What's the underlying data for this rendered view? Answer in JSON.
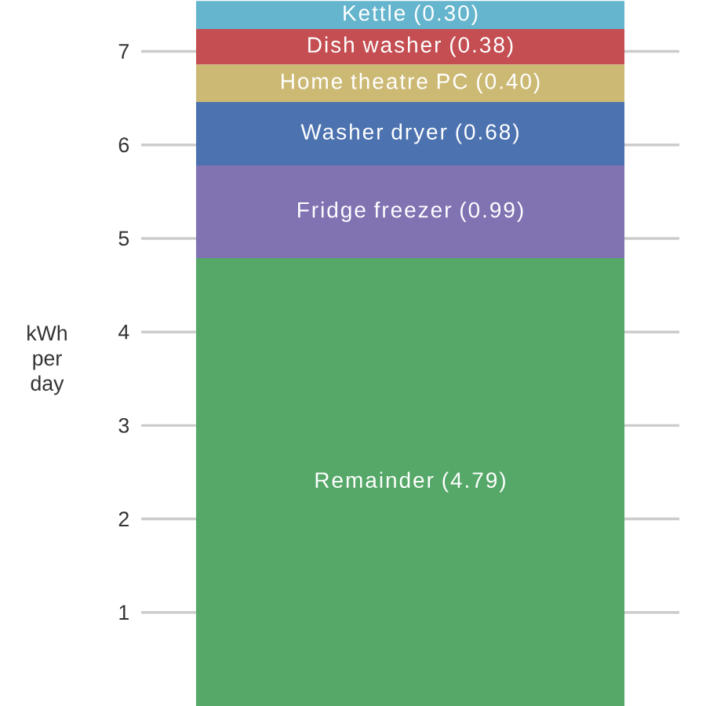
{
  "chart_data": {
    "type": "bar",
    "stacked": true,
    "categories": [
      null
    ],
    "ylabel": "kWh per day",
    "ylim": [
      0,
      7.55
    ],
    "yticks": [
      1,
      2,
      3,
      4,
      5,
      6,
      7
    ],
    "grid": "y",
    "tick_labels": "y",
    "series": [
      {
        "name": "Remainder",
        "color": "#55a868",
        "values": [
          4.79
        ],
        "value_labels": [
          "(4.79)"
        ]
      },
      {
        "name": "Fridge freezer",
        "color": "#8172b2",
        "values": [
          0.99
        ],
        "value_labels": [
          "(0.99)"
        ]
      },
      {
        "name": "Washer dryer",
        "color": "#4c72b0",
        "values": [
          0.68
        ],
        "value_labels": [
          "(0.68)"
        ]
      },
      {
        "name": "Home theatre PC",
        "color": "#ccb974",
        "values": [
          0.4
        ],
        "value_labels": [
          "(0.40)"
        ]
      },
      {
        "name": "Dish washer",
        "color": "#c44e52",
        "values": [
          0.38
        ],
        "value_labels": [
          "(0.38)"
        ]
      },
      {
        "name": "Kettle",
        "color": "#64b5cd",
        "values": [
          0.3
        ],
        "value_labels": [
          "(0.30)"
        ]
      }
    ]
  }
}
